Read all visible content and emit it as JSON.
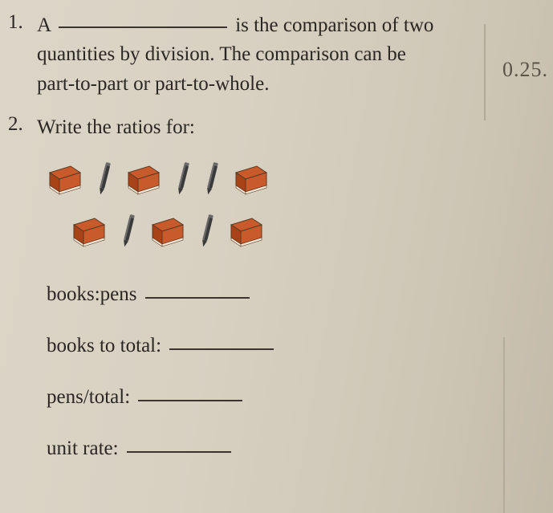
{
  "q1": {
    "number": "1.",
    "lead": "A",
    "tail1": "is the comparison of two",
    "line2": "quantities by division. The comparison can be",
    "line3": "part-to-part or part-to-whole."
  },
  "q2": {
    "number": "2.",
    "prompt": "Write the ratios for:",
    "row1": [
      "book",
      "pen",
      "book",
      "pen",
      "pen",
      "book"
    ],
    "row2": [
      "book",
      "pen",
      "book",
      "pen",
      "book"
    ],
    "sub1": "books:pens",
    "sub2": "books to total:",
    "sub3": "pens/total:",
    "sub4": "unit rate:"
  },
  "margin_note": "0.25.",
  "colors": {
    "book_cover": "#c85a2c",
    "book_cover_dark": "#a84318",
    "book_page": "#efe8d8",
    "book_outline": "#5b3a22",
    "pen_body": "#3a3a3a",
    "pen_light": "#6a6a6a",
    "text": "#2a2622",
    "underline": "#3a352e"
  }
}
